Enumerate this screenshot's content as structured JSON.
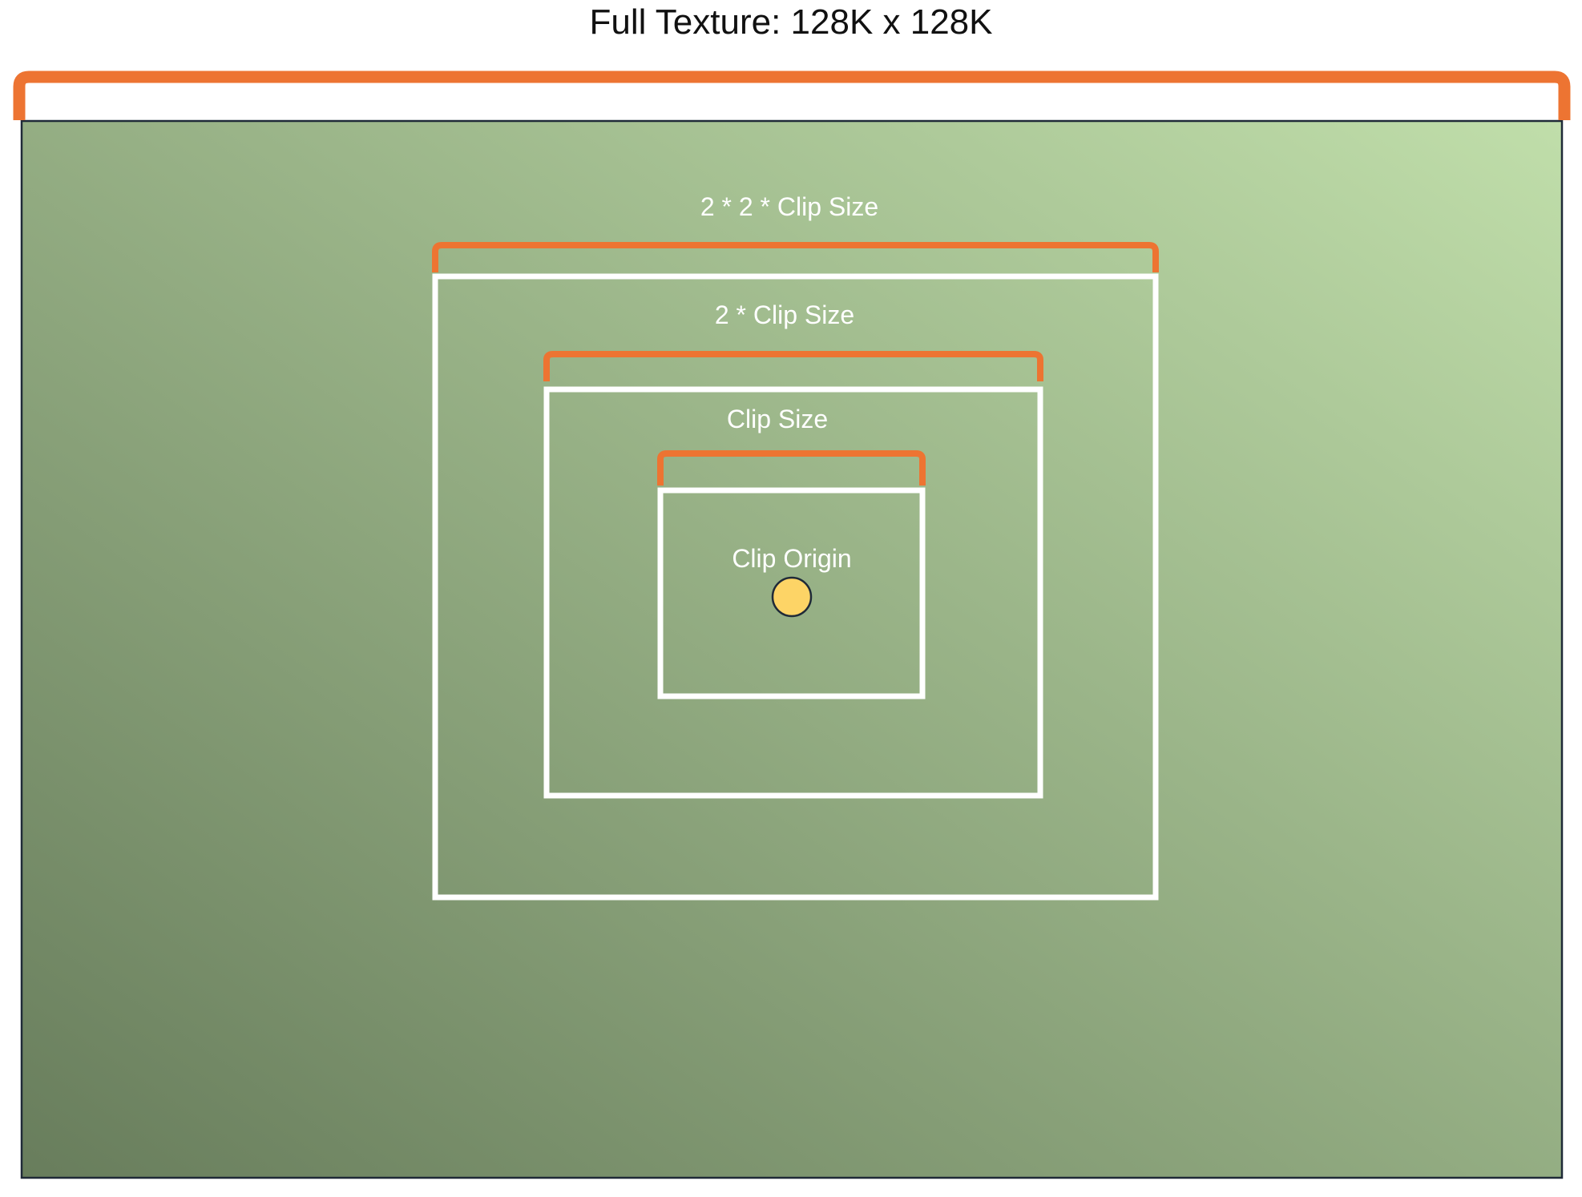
{
  "title": "Full Texture: 128K x 128K",
  "levels": {
    "outer": {
      "label": "2 * 2 * Clip Size"
    },
    "middle": {
      "label": "2 * Clip Size"
    },
    "inner": {
      "label": "Clip Size"
    }
  },
  "origin": {
    "label": "Clip Origin"
  },
  "colors": {
    "bracket": "#ED7432",
    "box_stroke": "#FFFFFF",
    "texture_border": "#1F2A38",
    "texture_gradient_dark": "#687D5C",
    "texture_gradient_light": "#C0DEAA",
    "title_text": "#111111",
    "label_text": "#FFFFFF",
    "origin_fill": "#FDD466",
    "origin_stroke": "#1F2A38"
  }
}
